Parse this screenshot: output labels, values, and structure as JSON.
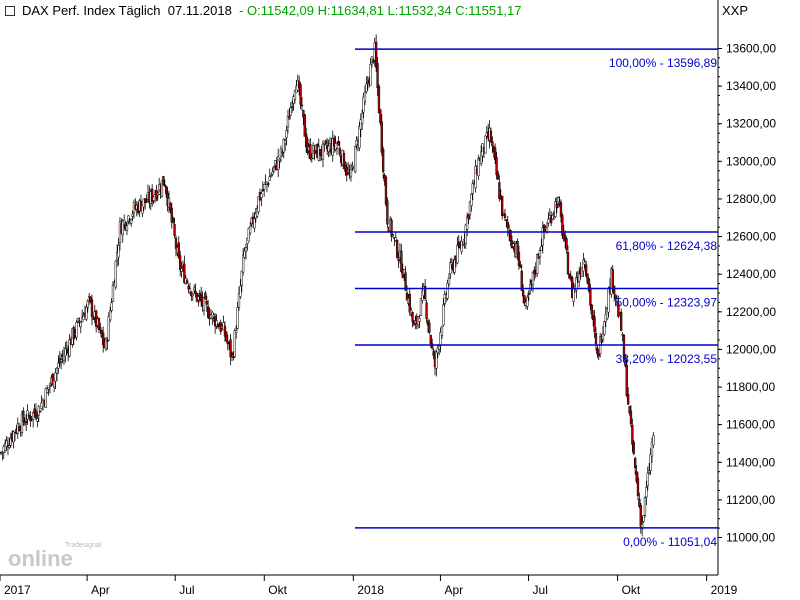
{
  "header": {
    "instrument": "DAX Perf. Index Täglich",
    "date": "07.11.2018",
    "ohlc_text": "- O:11542,09 H:11634,81 L:11532,34 C:11551,17",
    "symbol": "XXP"
  },
  "logo": {
    "text_top": "Tradesignal",
    "text_main": "online"
  },
  "colors": {
    "fib_line": "#0000cc",
    "fib_text": "#0000cc",
    "candle_up": "#ffffff",
    "candle_down": "#b00000",
    "candle_outline": "#000000",
    "header_ohlc": "#00a000"
  },
  "chart_data": {
    "type": "candlestick",
    "title": "DAX Perf. Index Täglich",
    "y_axis": {
      "side": "right",
      "range": [
        10900,
        13750
      ],
      "ticks": [
        "11000,00",
        "11200,00",
        "11400,00",
        "11600,00",
        "11800,00",
        "12000,00",
        "12200,00",
        "12400,00",
        "12600,00",
        "12800,00",
        "13000,00",
        "13200,00",
        "13400,00",
        "13600,00"
      ]
    },
    "x_axis": {
      "ticks": [
        "2017",
        "Apr",
        "Jul",
        "Okt",
        "2018",
        "Apr",
        "Jul",
        "Okt",
        "2019"
      ]
    },
    "grid": false,
    "series": [
      {
        "kind": "close_path",
        "points": [
          [
            "2017-01-02",
            11450
          ],
          [
            "2017-01-20",
            11600
          ],
          [
            "2017-02-10",
            11680
          ],
          [
            "2017-03-01",
            11900
          ],
          [
            "2017-03-15",
            12050
          ],
          [
            "2017-04-03",
            12250
          ],
          [
            "2017-04-20",
            12000
          ],
          [
            "2017-05-05",
            12650
          ],
          [
            "2017-05-20",
            12750
          ],
          [
            "2017-06-05",
            12800
          ],
          [
            "2017-06-20",
            12900
          ],
          [
            "2017-07-05",
            12450
          ],
          [
            "2017-07-20",
            12300
          ],
          [
            "2017-08-05",
            12200
          ],
          [
            "2017-08-20",
            12100
          ],
          [
            "2017-08-29",
            11950
          ],
          [
            "2017-09-10",
            12500
          ],
          [
            "2017-09-25",
            12800
          ],
          [
            "2017-10-10",
            12950
          ],
          [
            "2017-10-20",
            13050
          ],
          [
            "2017-11-03",
            13450
          ],
          [
            "2017-11-15",
            13050
          ],
          [
            "2017-12-01",
            13050
          ],
          [
            "2017-12-15",
            13100
          ],
          [
            "2017-12-29",
            12900
          ],
          [
            "2018-01-15",
            13400
          ],
          [
            "2018-01-23",
            13596.89
          ],
          [
            "2018-02-05",
            12700
          ],
          [
            "2018-02-20",
            12450
          ],
          [
            "2018-03-05",
            12100
          ],
          [
            "2018-03-15",
            12300
          ],
          [
            "2018-03-26",
            11900
          ],
          [
            "2018-04-10",
            12400
          ],
          [
            "2018-04-25",
            12600
          ],
          [
            "2018-05-10",
            13000
          ],
          [
            "2018-05-22",
            13150
          ],
          [
            "2018-06-05",
            12700
          ],
          [
            "2018-06-20",
            12500
          ],
          [
            "2018-06-28",
            12200
          ],
          [
            "2018-07-15",
            12600
          ],
          [
            "2018-07-31",
            12800
          ],
          [
            "2018-08-15",
            12300
          ],
          [
            "2018-08-28",
            12500
          ],
          [
            "2018-09-10",
            11950
          ],
          [
            "2018-09-25",
            12400
          ],
          [
            "2018-10-05",
            12100
          ],
          [
            "2018-10-15",
            11550
          ],
          [
            "2018-10-26",
            11051.04
          ],
          [
            "2018-11-07",
            11551.17
          ]
        ]
      }
    ],
    "ohlc_last": {
      "date": "07.11.2018",
      "open": 11542.09,
      "high": 11634.81,
      "low": 11532.34,
      "close": 11551.17
    },
    "fibonacci": [
      {
        "value": 13596.89,
        "label": "100,00% - 13596,89"
      },
      {
        "value": 12624.38,
        "label": "61,80% - 12624,38"
      },
      {
        "value": 12323.97,
        "label": "50,00% - 12323,97"
      },
      {
        "value": 12023.55,
        "label": "38,20% - 12023,55"
      },
      {
        "value": 11051.04,
        "label": "0,00% - 11051,04"
      }
    ]
  }
}
